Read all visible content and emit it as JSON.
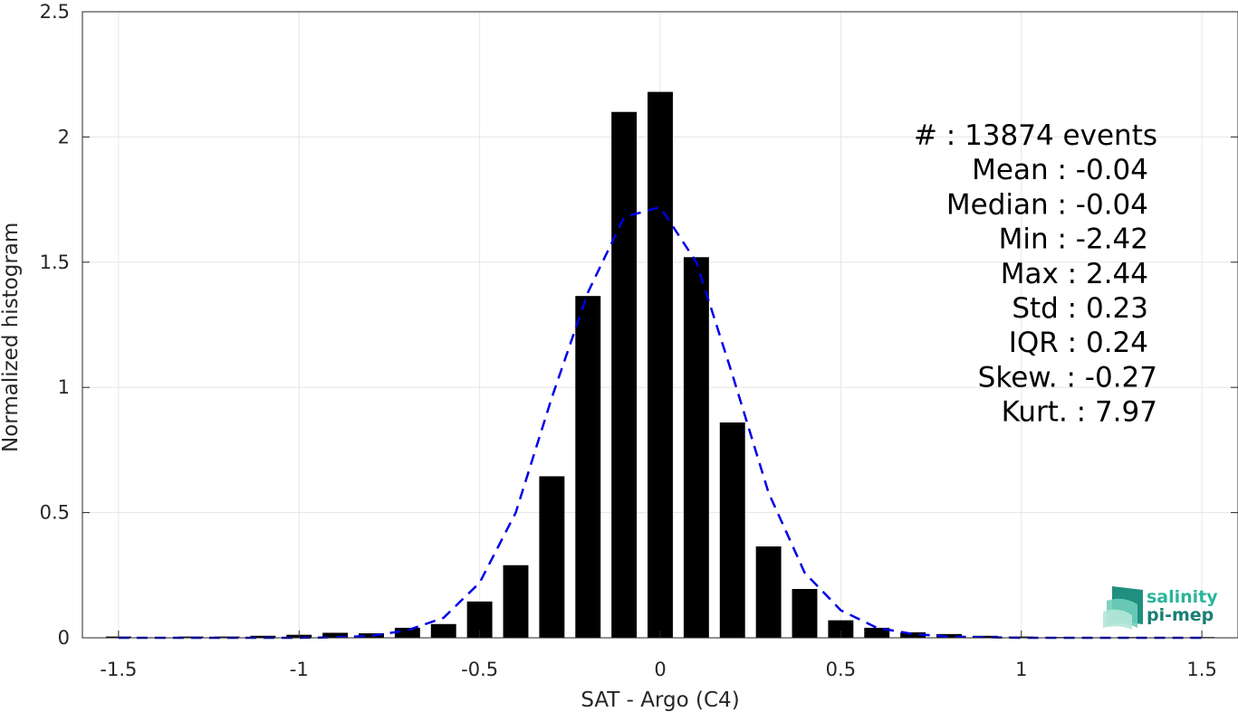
{
  "chart_data": {
    "type": "bar",
    "xlabel": "SAT - Argo (C4)",
    "ylabel": "Normalized histogram",
    "xlim": [
      -1.6,
      1.6
    ],
    "ylim": [
      0,
      2.5
    ],
    "x_ticks": [
      -1.5,
      -1,
      -0.5,
      0,
      0.5,
      1,
      1.5
    ],
    "x_tick_labels": [
      "-1.5",
      "-1",
      "-0.5",
      "0",
      "0.5",
      "1",
      "1.5"
    ],
    "y_ticks": [
      0,
      0.5,
      1,
      1.5,
      2,
      2.5
    ],
    "y_tick_labels": [
      "0",
      "0.5",
      "1",
      "1.5",
      "2",
      "2.5"
    ],
    "grid": true,
    "bar_width": 0.07,
    "series": [
      {
        "type": "bar",
        "color": "#000000",
        "x": [
          -1.5,
          -1.4,
          -1.3,
          -1.2,
          -1.1,
          -1.0,
          -0.9,
          -0.8,
          -0.7,
          -0.6,
          -0.5,
          -0.4,
          -0.3,
          -0.2,
          -0.1,
          0.0,
          0.1,
          0.2,
          0.3,
          0.4,
          0.5,
          0.6,
          0.7,
          0.8,
          0.9,
          1.0,
          1.1,
          1.2,
          1.3,
          1.4,
          1.5
        ],
        "values": [
          0.005,
          0.002,
          0.005,
          0.005,
          0.008,
          0.012,
          0.02,
          0.018,
          0.04,
          0.055,
          0.145,
          0.29,
          0.645,
          1.365,
          2.1,
          2.18,
          1.52,
          0.86,
          0.365,
          0.195,
          0.07,
          0.04,
          0.022,
          0.015,
          0.008,
          0.005,
          0.003,
          0.002,
          0.003,
          0.002,
          0.003
        ]
      },
      {
        "type": "line",
        "style": "dashed",
        "color": "#0000e6",
        "x": [
          -1.5,
          -1.4,
          -1.3,
          -1.2,
          -1.1,
          -1.0,
          -0.9,
          -0.8,
          -0.7,
          -0.6,
          -0.5,
          -0.4,
          -0.3,
          -0.2,
          -0.1,
          0.0,
          0.1,
          0.2,
          0.3,
          0.4,
          0.5,
          0.6,
          0.7,
          0.8,
          0.9,
          1.0,
          1.1,
          1.2,
          1.3,
          1.4,
          1.5
        ],
        "values": [
          0.0,
          0.0,
          0.0,
          0.0,
          0.0,
          0.0,
          0.002,
          0.008,
          0.03,
          0.08,
          0.22,
          0.5,
          0.96,
          1.38,
          1.68,
          1.72,
          1.5,
          1.05,
          0.58,
          0.26,
          0.11,
          0.04,
          0.015,
          0.005,
          0.002,
          0.0,
          0.0,
          0.0,
          0.0,
          0.0,
          0.0
        ]
      }
    ]
  },
  "stats": [
    "#  : 13874 events",
    "Mean : -0.04",
    "Median : -0.04",
    "Min : -2.42",
    "Max : 2.44",
    "Std : 0.23",
    "IQR : 0.24",
    "Skew. : -0.27",
    "Kurt. : 7.97"
  ],
  "logo": {
    "line1": "salinity",
    "line2": "pi-mep",
    "color_top": "#2bb59a",
    "color_bottom": "#1a7f74"
  }
}
